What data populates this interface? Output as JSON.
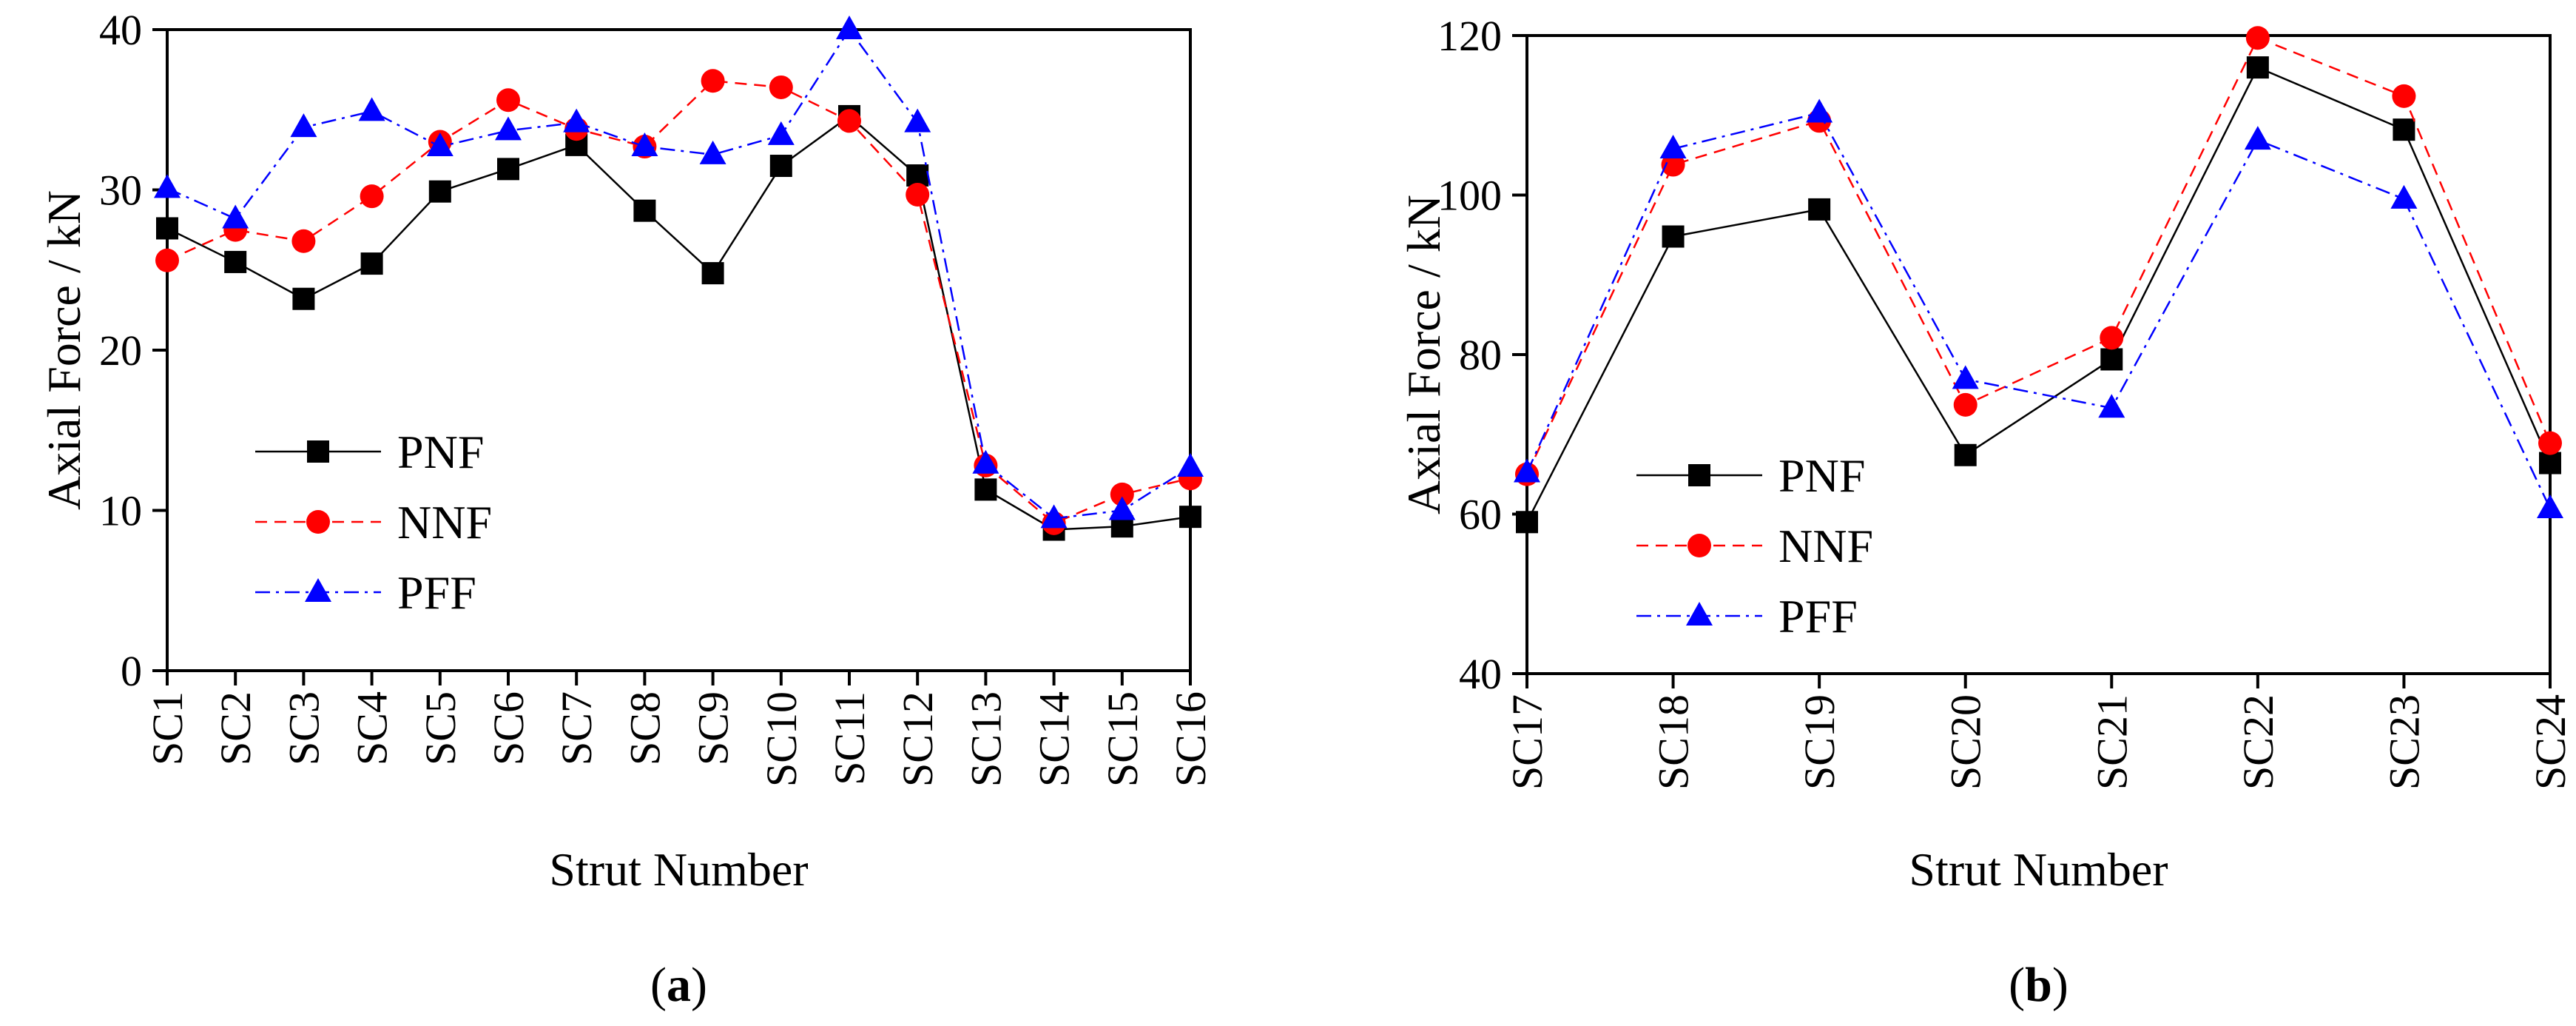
{
  "chart_data": [
    {
      "type": "line",
      "panel_label": "a",
      "title": "",
      "xlabel": "Strut Number",
      "ylabel": "Axial Force / kN",
      "ylim": [
        0,
        40
      ],
      "yticks": [
        0,
        10,
        20,
        30,
        40
      ],
      "categories": [
        "SC1",
        "SC2",
        "SC3",
        "SC4",
        "SC5",
        "SC6",
        "SC7",
        "SC8",
        "SC9",
        "SC10",
        "SC11",
        "SC12",
        "SC13",
        "SC14",
        "SC15",
        "SC16"
      ],
      "legend_position": "lower-left",
      "series": [
        {
          "name": "PNF",
          "color": "#000000",
          "marker": "square",
          "dash": "solid",
          "values": [
            27.6,
            25.5,
            23.2,
            25.4,
            29.9,
            31.3,
            32.8,
            28.7,
            24.8,
            31.5,
            34.6,
            30.9,
            11.3,
            8.8,
            9.0,
            9.6
          ]
        },
        {
          "name": "NNF",
          "color": "#ff0000",
          "marker": "circle",
          "dash": "dashed",
          "values": [
            25.6,
            27.5,
            26.8,
            29.6,
            33.0,
            35.6,
            33.8,
            32.7,
            36.8,
            36.4,
            34.3,
            29.7,
            12.8,
            9.2,
            11.0,
            12.0
          ]
        },
        {
          "name": "PFF",
          "color": "#0000ff",
          "marker": "triangle",
          "dash": "dashdot",
          "values": [
            30.1,
            28.2,
            33.9,
            34.9,
            32.7,
            33.7,
            34.2,
            32.7,
            32.2,
            33.4,
            40.0,
            34.2,
            12.9,
            9.5,
            10.0,
            12.7
          ]
        }
      ]
    },
    {
      "type": "line",
      "panel_label": "b",
      "title": "",
      "xlabel": "Strut Number",
      "ylabel": "Axial Force / kN",
      "ylim": [
        40,
        120
      ],
      "yticks": [
        40,
        60,
        80,
        100,
        120
      ],
      "categories": [
        "SC17",
        "SC18",
        "SC19",
        "SC20",
        "SC21",
        "SC22",
        "SC23",
        "SC24"
      ],
      "legend_position": "lower-left",
      "series": [
        {
          "name": "PNF",
          "color": "#000000",
          "marker": "square",
          "dash": "solid",
          "values": [
            59.0,
            94.8,
            98.2,
            67.4,
            79.4,
            116.0,
            108.2,
            66.4
          ]
        },
        {
          "name": "NNF",
          "color": "#ff0000",
          "marker": "circle",
          "dash": "dashed",
          "values": [
            65.0,
            103.8,
            109.3,
            73.7,
            82.1,
            119.7,
            112.4,
            68.9
          ]
        },
        {
          "name": "PFF",
          "color": "#0000ff",
          "marker": "triangle",
          "dash": "dashdot",
          "values": [
            65.2,
            105.8,
            110.3,
            76.9,
            73.3,
            106.9,
            99.5,
            60.7
          ]
        }
      ]
    }
  ]
}
